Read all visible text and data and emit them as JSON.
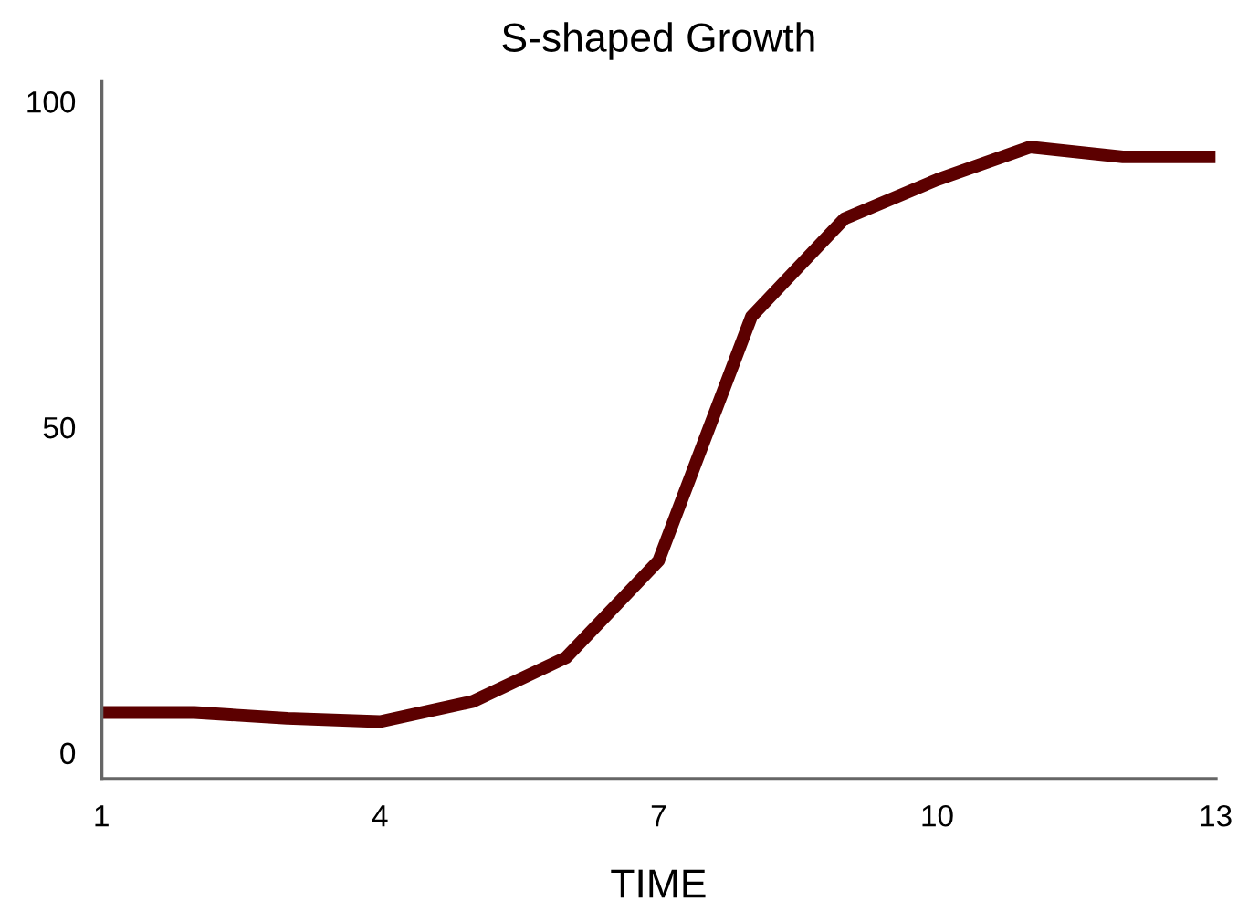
{
  "chart_data": {
    "type": "line",
    "title": "S-shaped Growth",
    "xlabel": "TIME",
    "x": [
      1,
      2,
      3,
      4,
      5,
      6,
      7,
      8,
      9,
      10,
      11,
      12,
      13
    ],
    "series": [
      {
        "color": "#5c0000",
        "values": [
          6.2,
          6.2,
          5.3,
          4.8,
          7.9,
          14.6,
          29.5,
          67,
          82,
          88,
          93,
          91.5,
          91.5
        ]
      }
    ],
    "xlim": [
      1,
      13
    ],
    "xticks": [
      1,
      4,
      7,
      10,
      13
    ],
    "ylim": [
      -4,
      103
    ],
    "yticks": [
      0,
      50,
      100
    ],
    "grid": false,
    "legend": false,
    "marker": "none",
    "line_style": "solid"
  }
}
